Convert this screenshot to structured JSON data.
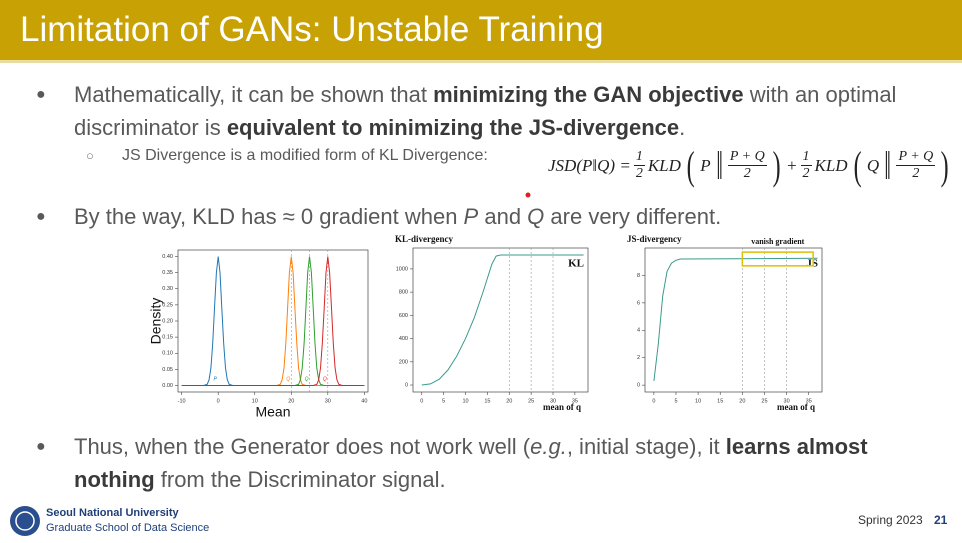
{
  "header": {
    "title": "Limitation of GANs: Unstable Training"
  },
  "bullets": [
    {
      "segments": [
        {
          "text": " Mathematically, it can be shown that ",
          "style": "normal"
        },
        {
          "text": "minimizing the GAN objective",
          "style": "bold"
        },
        {
          "text": " with an optimal discriminator is ",
          "style": "normal"
        },
        {
          "text": "equivalent to minimizing the JS-divergence",
          "style": "bold"
        },
        {
          "text": ".",
          "style": "normal"
        }
      ],
      "sub": {
        "text": "JS Divergence is a modified form of KL Divergence:",
        "formula": [
          {
            "text": "JSD(P‖Q) ="
          },
          {
            "num": "1",
            "den": "2"
          },
          {
            "text": "KLD"
          },
          {
            "paren": "("
          },
          {
            "text": "P"
          },
          {
            "paren": "‖"
          },
          {
            "num": "P + Q",
            "den": "2"
          },
          {
            "paren": ")"
          },
          {
            "text": "+"
          },
          {
            "num": "1",
            "den": "2"
          },
          {
            "text": "KLD"
          },
          {
            "paren": "("
          },
          {
            "text": "Q"
          },
          {
            "paren": "‖"
          },
          {
            "num": "P + Q",
            "den": "2"
          },
          {
            "paren": ")"
          }
        ]
      }
    },
    {
      "segments": [
        {
          "text": "By the way, KLD has ≈ 0 gradient when ",
          "style": "normal"
        },
        {
          "text": "P",
          "style": "italic"
        },
        {
          "text": " and ",
          "style": "normal"
        },
        {
          "text": "Q",
          "style": "italic"
        },
        {
          "text": " are very different.",
          "style": "normal"
        }
      ]
    },
    {
      "segments": [
        {
          "text": "Thus, when the Generator does not work well (",
          "style": "normal"
        },
        {
          "text": "e.g.",
          "style": "italic"
        },
        {
          "text": ", initial stage), it ",
          "style": "normal"
        },
        {
          "text": "learns almost nothing",
          "style": "bold"
        },
        {
          "text": " from the Discriminator signal.",
          "style": "normal"
        }
      ]
    }
  ],
  "charts": [
    {
      "type": "line",
      "xlabel": "Mean",
      "ylabel": "Density",
      "legend": "at-peak",
      "xlim": [
        -11,
        41
      ],
      "ylim": [
        -0.02,
        0.42
      ],
      "xticks": [
        -10,
        0,
        10,
        20,
        30,
        40
      ],
      "yticks": [
        {
          "value": 0,
          "label": "0.00"
        },
        {
          "value": 0.05,
          "label": "0.05"
        },
        {
          "value": 0.1,
          "label": "0.10"
        },
        {
          "value": 0.15,
          "label": "0.15"
        },
        {
          "value": 0.2,
          "label": "0.20"
        },
        {
          "value": 0.25,
          "label": "0.25"
        },
        {
          "value": 0.3,
          "label": "0.30"
        },
        {
          "value": 0.35,
          "label": "0.35"
        },
        {
          "value": 0.4,
          "label": "0.40"
        }
      ],
      "vlines": [
        20,
        25,
        30
      ],
      "series": [
        {
          "name": "P",
          "color": "#1f77b4",
          "x": [
            -10,
            -4,
            -3,
            -2.5,
            -2,
            -1.5,
            -1,
            -0.5,
            0,
            0.5,
            1,
            1.5,
            2,
            2.5,
            3,
            4,
            40
          ],
          "values": [
            0,
            0,
            0.004,
            0.018,
            0.054,
            0.13,
            0.24,
            0.35,
            0.4,
            0.35,
            0.24,
            0.13,
            0.054,
            0.018,
            0.004,
            0,
            0
          ]
        },
        {
          "name": "Q",
          "color": "#ff7f0e",
          "x": [
            -10,
            16,
            17,
            17.5,
            18,
            18.5,
            19,
            19.5,
            20,
            20.5,
            21,
            21.5,
            22,
            22.5,
            23,
            24,
            40
          ],
          "values": [
            0,
            0,
            0.004,
            0.018,
            0.054,
            0.13,
            0.24,
            0.35,
            0.4,
            0.35,
            0.24,
            0.13,
            0.054,
            0.018,
            0.004,
            0,
            0
          ]
        },
        {
          "name": "Q",
          "color": "#2ca02c",
          "x": [
            -10,
            21,
            22,
            22.5,
            23,
            23.5,
            24,
            24.5,
            25,
            25.5,
            26,
            26.5,
            27,
            27.5,
            28,
            29,
            40
          ],
          "values": [
            0,
            0,
            0.004,
            0.018,
            0.054,
            0.13,
            0.24,
            0.35,
            0.4,
            0.35,
            0.24,
            0.13,
            0.054,
            0.018,
            0.004,
            0,
            0
          ]
        },
        {
          "name": "Q",
          "color": "#d62728",
          "x": [
            -10,
            26,
            27,
            27.5,
            28,
            28.5,
            29,
            29.5,
            30,
            30.5,
            31,
            31.5,
            32,
            32.5,
            33,
            34,
            40
          ],
          "values": [
            0,
            0,
            0.004,
            0.018,
            0.054,
            0.13,
            0.24,
            0.35,
            0.4,
            0.35,
            0.24,
            0.13,
            0.054,
            0.018,
            0.004,
            0,
            0
          ]
        }
      ]
    },
    {
      "type": "line",
      "title": "KL-divergency",
      "xlabel": "mean of q",
      "legend": "upper right",
      "xlim": [
        -2,
        38
      ],
      "ylim": [
        -60,
        1180
      ],
      "xticks": [
        0,
        5,
        10,
        15,
        20,
        25,
        30,
        35
      ],
      "yticks": [
        0,
        200,
        400,
        600,
        800,
        1000
      ],
      "vlines": [
        20,
        25,
        30
      ],
      "x": [
        0,
        2,
        4,
        6,
        8,
        10,
        12,
        14,
        16,
        17,
        18,
        37
      ],
      "series": [
        {
          "name": "KL",
          "color": "#3a9a8c",
          "values": [
            0,
            10,
            50,
            130,
            250,
            400,
            580,
            800,
            1040,
            1110,
            1120,
            1120
          ]
        }
      ]
    },
    {
      "type": "line",
      "title": "JS-divergency",
      "xlabel": "mean of q",
      "legend": "upper right",
      "xlim": [
        -2,
        38
      ],
      "ylim": [
        -0.5,
        10
      ],
      "xticks": [
        0,
        5,
        10,
        15,
        20,
        25,
        30,
        35
      ],
      "yticks": [
        0,
        2,
        4,
        6,
        8
      ],
      "vlines": [
        20,
        25,
        30
      ],
      "x": [
        0,
        1,
        2,
        3,
        4,
        5,
        6,
        37
      ],
      "series": [
        {
          "name": "JS",
          "color": "#3a9a8c",
          "values": [
            0.3,
            3,
            6.5,
            8.3,
            8.9,
            9.1,
            9.2,
            9.25
          ]
        }
      ],
      "highlight": {
        "label": "vanish gradient",
        "x": [
          20,
          36
        ],
        "y": [
          8.7,
          9.7
        ],
        "color": "#e0c000"
      }
    }
  ],
  "footer": {
    "university": "Seoul National University",
    "school": "Graduate School of Data Science",
    "term": "Spring 2023",
    "page": "21"
  }
}
